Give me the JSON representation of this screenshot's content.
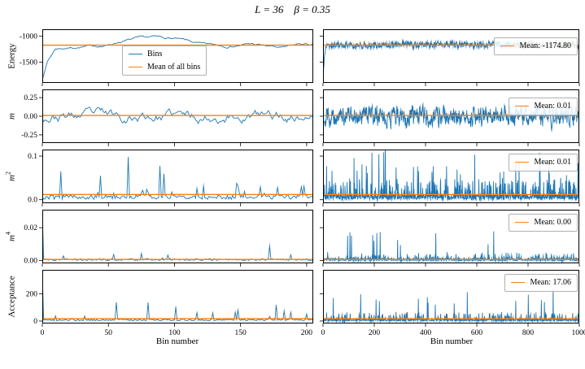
{
  "title": "L = 36    β = 0.35",
  "xlabel": "Bin number",
  "colors": {
    "trace": "#1f77b4",
    "mean": "#ff7f0e",
    "axis": "#000000"
  },
  "legend_left": {
    "bins_label": "Bins",
    "mean_label": "Mean of all bins"
  },
  "chart_data": [
    {
      "type": "line",
      "ylabel": "Energy",
      "ylabel_exp": "",
      "ylim": [
        -1900,
        -870
      ],
      "yticks": [
        {
          "v": -1000,
          "t": "-1000"
        },
        {
          "v": -1500,
          "t": "-1500"
        }
      ],
      "mean": -1174.8,
      "legend_right": "Mean: -1174.80",
      "left": {
        "n": 206,
        "xlim": [
          0,
          205
        ],
        "xticks": [
          {
            "v": 0,
            "t": "0"
          },
          {
            "v": 50,
            "t": "50"
          },
          {
            "v": 100,
            "t": "100"
          },
          {
            "v": 150,
            "t": "150"
          },
          {
            "v": 200,
            "t": "200"
          }
        ],
        "seed": 7,
        "gen": {
          "type": "ar",
          "rho": 0.88,
          "sigma": 14,
          "keypoints": [
            [
              0,
              -1820
            ],
            [
              4,
              -1480
            ],
            [
              10,
              -1240
            ],
            [
              30,
              -1205
            ],
            [
              48,
              -1185
            ],
            [
              58,
              -1110
            ],
            [
              70,
              -1055
            ],
            [
              85,
              -1030
            ],
            [
              100,
              -1050
            ],
            [
              112,
              -1115
            ],
            [
              122,
              -1170
            ],
            [
              140,
              -1190
            ],
            [
              158,
              -1150
            ],
            [
              170,
              -1195
            ],
            [
              182,
              -1235
            ],
            [
              195,
              -1160
            ],
            [
              205,
              -1170
            ]
          ]
        }
      },
      "right": {
        "n": 1001,
        "xlim": [
          0,
          1000
        ],
        "xticks": [
          {
            "v": 0,
            "t": "0"
          },
          {
            "v": 200,
            "t": "200"
          },
          {
            "v": 400,
            "t": "400"
          },
          {
            "v": 600,
            "t": "600"
          },
          {
            "v": 800,
            "t": "800"
          },
          {
            "v": 1000,
            "t": "1000"
          }
        ],
        "seed": 17,
        "gen": {
          "type": "ar",
          "rho": 0.55,
          "sigma": 48,
          "keypoints": [
            [
              0,
              -1790
            ],
            [
              5,
              -1400
            ],
            [
              12,
              -1175
            ],
            [
              1000,
              -1165
            ]
          ]
        }
      }
    },
    {
      "type": "line",
      "ylabel": "m",
      "ylabel_exp": "",
      "ylim": [
        -0.36,
        0.36
      ],
      "yticks": [
        {
          "v": 0.25,
          "t": "0.25"
        },
        {
          "v": 0,
          "t": "0.00"
        },
        {
          "v": -0.25,
          "t": "-0.25"
        }
      ],
      "mean": 0.01,
      "legend_right": "Mean: 0.01",
      "left": {
        "n": 206,
        "xlim": [
          0,
          205
        ],
        "xticks": [
          {
            "v": 0,
            "t": "0"
          },
          {
            "v": 50,
            "t": "50"
          },
          {
            "v": 100,
            "t": "100"
          },
          {
            "v": 150,
            "t": "150"
          },
          {
            "v": 200,
            "t": "200"
          }
        ],
        "seed": 23,
        "gen": {
          "type": "ar",
          "rho": 0.86,
          "sigma": 0.045,
          "keypoints": [
            [
              0,
              0
            ],
            [
              205,
              0
            ]
          ]
        }
      },
      "right": {
        "n": 1001,
        "xlim": [
          0,
          1000
        ],
        "xticks": [
          {
            "v": 0,
            "t": "0"
          },
          {
            "v": 200,
            "t": "200"
          },
          {
            "v": 400,
            "t": "400"
          },
          {
            "v": 600,
            "t": "600"
          },
          {
            "v": 800,
            "t": "800"
          },
          {
            "v": 1000,
            "t": "1000"
          }
        ],
        "seed": 29,
        "gen": {
          "type": "ar",
          "rho": 0.55,
          "sigma": 0.1,
          "keypoints": [
            [
              0,
              0
            ],
            [
              1000,
              0
            ]
          ]
        }
      }
    },
    {
      "type": "line",
      "ylabel": "m",
      "ylabel_exp": "2",
      "ylim": [
        -0.008,
        0.115
      ],
      "yticks": [
        {
          "v": 0,
          "t": "0.0"
        },
        {
          "v": 0.1,
          "t": "0.1"
        }
      ],
      "mean": 0.012,
      "legend_right": "Mean: 0.01",
      "left": {
        "n": 206,
        "xlim": [
          0,
          205
        ],
        "xticks": [
          {
            "v": 0,
            "t": "0"
          },
          {
            "v": 50,
            "t": "50"
          },
          {
            "v": 100,
            "t": "100"
          },
          {
            "v": 150,
            "t": "150"
          },
          {
            "v": 200,
            "t": "200"
          }
        ],
        "seed": 31,
        "gen": {
          "type": "spiky",
          "base": 0.006,
          "jitter": 0.005,
          "p": 0.1,
          "amp": 0.03,
          "pBig": 0.02,
          "ampBig": 0.09,
          "clampMin": 0
        }
      },
      "right": {
        "n": 1001,
        "xlim": [
          0,
          1000
        ],
        "xticks": [
          {
            "v": 0,
            "t": "0"
          },
          {
            "v": 200,
            "t": "200"
          },
          {
            "v": 400,
            "t": "400"
          },
          {
            "v": 600,
            "t": "600"
          },
          {
            "v": 800,
            "t": "800"
          },
          {
            "v": 1000,
            "t": "1000"
          }
        ],
        "seed": 37,
        "gen": {
          "type": "spiky",
          "base": 0.006,
          "jitter": 0.006,
          "p": 0.2,
          "amp": 0.04,
          "pBig": 0.025,
          "ampBig": 0.095,
          "clampMin": 0
        }
      }
    },
    {
      "type": "line",
      "ylabel": "m",
      "ylabel_exp": "4",
      "ylim": [
        -0.0018,
        0.031
      ],
      "yticks": [
        {
          "v": 0,
          "t": "0.00"
        },
        {
          "v": 0.02,
          "t": "0.02"
        }
      ],
      "mean": 0.0006,
      "legend_right": "Mean: 0.00",
      "left": {
        "n": 206,
        "xlim": [
          0,
          205
        ],
        "xticks": [
          {
            "v": 0,
            "t": "0"
          },
          {
            "v": 50,
            "t": "50"
          },
          {
            "v": 100,
            "t": "100"
          },
          {
            "v": 150,
            "t": "150"
          },
          {
            "v": 200,
            "t": "200"
          }
        ],
        "seed": 41,
        "gen": {
          "type": "spiky",
          "base": 0.0005,
          "jitter": 0.0006,
          "p": 0.05,
          "amp": 0.004,
          "pBig": 0.012,
          "ampBig": 0.013,
          "start": 0.03,
          "clampMin": 0
        }
      },
      "right": {
        "n": 1001,
        "xlim": [
          0,
          1000
        ],
        "xticks": [
          {
            "v": 0,
            "t": "0"
          },
          {
            "v": 200,
            "t": "200"
          },
          {
            "v": 400,
            "t": "400"
          },
          {
            "v": 600,
            "t": "600"
          },
          {
            "v": 800,
            "t": "800"
          },
          {
            "v": 1000,
            "t": "1000"
          }
        ],
        "seed": 43,
        "gen": {
          "type": "spiky",
          "base": 0.0005,
          "jitter": 0.0008,
          "p": 0.1,
          "amp": 0.004,
          "pBig": 0.012,
          "ampBig": 0.017,
          "start": 0.03,
          "clampMin": 0
        }
      }
    },
    {
      "type": "line",
      "ylabel": "Acceptance",
      "ylabel_exp": "",
      "ylim": [
        -18,
        375
      ],
      "yticks": [
        {
          "v": 0,
          "t": "0"
        },
        {
          "v": 200,
          "t": "200"
        }
      ],
      "mean": 17.06,
      "legend_right": "Mean: 17.06",
      "left": {
        "n": 206,
        "xlim": [
          0,
          205
        ],
        "xticks": [
          {
            "v": 0,
            "t": "0"
          },
          {
            "v": 50,
            "t": "50"
          },
          {
            "v": 100,
            "t": "100"
          },
          {
            "v": 150,
            "t": "150"
          },
          {
            "v": 200,
            "t": "200"
          }
        ],
        "seed": 47,
        "gen": {
          "type": "spiky",
          "base": 8,
          "jitter": 7,
          "p": 0.06,
          "amp": 60,
          "pBig": 0.02,
          "ampBig": 130,
          "start": 350,
          "clampMin": 0
        }
      },
      "right": {
        "n": 1001,
        "xlim": [
          0,
          1000
        ],
        "xticks": [
          {
            "v": 0,
            "t": "0"
          },
          {
            "v": 200,
            "t": "200"
          },
          {
            "v": 400,
            "t": "400"
          },
          {
            "v": 600,
            "t": "600"
          },
          {
            "v": 800,
            "t": "800"
          },
          {
            "v": 1000,
            "t": "1000"
          }
        ],
        "seed": 53,
        "gen": {
          "type": "spiky",
          "base": 8,
          "jitter": 8,
          "p": 0.12,
          "amp": 55,
          "pBig": 0.02,
          "ampBig": 230,
          "start": 355,
          "clampMin": 0
        }
      }
    }
  ]
}
